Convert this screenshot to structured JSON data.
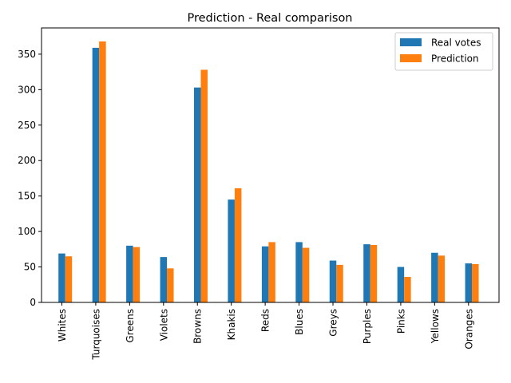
{
  "chart_data": {
    "type": "bar",
    "title": "Prediction - Real comparison",
    "xlabel": "",
    "ylabel": "",
    "categories": [
      "Whites",
      "Turquoises",
      "Greens",
      "Violets",
      "Browns",
      "Khakis",
      "Reds",
      "Blues",
      "Greys",
      "Purples",
      "Pinks",
      "Yellows",
      "Oranges"
    ],
    "series": [
      {
        "name": "Real votes",
        "color": "#1f77b4",
        "values": [
          69,
          359,
          80,
          64,
          303,
          145,
          79,
          85,
          59,
          82,
          50,
          70,
          55
        ]
      },
      {
        "name": "Prediction",
        "color": "#ff7f0e",
        "values": [
          65,
          368,
          78,
          48,
          328,
          161,
          85,
          77,
          53,
          81,
          36,
          66,
          54
        ]
      }
    ],
    "ylim": [
      0,
      387
    ],
    "yticks": [
      0,
      50,
      100,
      150,
      200,
      250,
      300,
      350
    ],
    "grid": false,
    "legend": "top-right"
  }
}
